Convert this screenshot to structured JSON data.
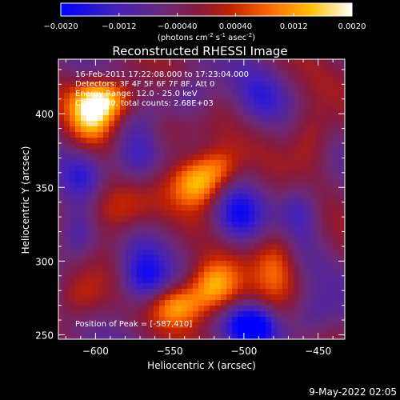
{
  "colorbar": {
    "ticks": [
      "-0.0020",
      "-0.0012",
      "-0.00040",
      "0.00040",
      "0.0012",
      "0.0020"
    ],
    "tick_values": [
      -0.002,
      -0.0012,
      -0.0004,
      0.0004,
      0.0012,
      0.002
    ],
    "range": [
      -0.002,
      0.002
    ],
    "unit_base": "(photons cm",
    "unit_exp1": "-2",
    "unit_mid": " s",
    "unit_exp2": "-1",
    "unit_mid2": " asec",
    "unit_exp3": "-2",
    "unit_end": ")",
    "colormap": [
      "#0000ff",
      "#3b1fb0",
      "#5a2a8a",
      "#7a2a5a",
      "#a01f10",
      "#d04000",
      "#ff8c00",
      "#ffd040",
      "#ffffff"
    ]
  },
  "chart_data": {
    "type": "heatmap",
    "title": "Reconstructed RHESSI Image",
    "xlabel": "Heliocentric X (arcsec)",
    "ylabel": "Heliocentric Y (arcsec)",
    "xlim": [
      -625,
      -432
    ],
    "ylim": [
      247,
      437
    ],
    "x_ticks": [
      -600,
      -550,
      -500,
      -450
    ],
    "y_ticks": [
      250,
      300,
      350,
      400
    ],
    "x_tick_labels": [
      "−600",
      "−550",
      "−500",
      "−450"
    ],
    "y_tick_labels": [
      "250",
      "300",
      "350",
      "400"
    ],
    "value_range": [
      -0.002,
      0.002
    ],
    "grid": false,
    "blobs": [
      {
        "x": -593,
        "y": 410,
        "w": 0.002,
        "sx": 14,
        "sy": 10
      },
      {
        "x": -603,
        "y": 398,
        "w": 0.0015,
        "sx": 10,
        "sy": 12
      },
      {
        "x": -531,
        "y": 354,
        "w": 0.0019,
        "sx": 12,
        "sy": 12
      },
      {
        "x": -516,
        "y": 364,
        "w": 0.001,
        "sx": 10,
        "sy": 10
      },
      {
        "x": -520,
        "y": 283,
        "w": 0.0019,
        "sx": 12,
        "sy": 12
      },
      {
        "x": -545,
        "y": 270,
        "w": 0.0016,
        "sx": 14,
        "sy": 10
      },
      {
        "x": -586,
        "y": 336,
        "w": 0.0012,
        "sx": 16,
        "sy": 14
      },
      {
        "x": -552,
        "y": 387,
        "w": 0.0008,
        "sx": 14,
        "sy": 12
      },
      {
        "x": -478,
        "y": 300,
        "w": 0.0011,
        "sx": 10,
        "sy": 18
      },
      {
        "x": -455,
        "y": 385,
        "w": 0.0009,
        "sx": 10,
        "sy": 16
      },
      {
        "x": -612,
        "y": 275,
        "w": 0.0009,
        "sx": 12,
        "sy": 12
      },
      {
        "x": -562,
        "y": 300,
        "w": 0.0007,
        "sx": 12,
        "sy": 12
      },
      {
        "x": -566,
        "y": 291,
        "w": -0.0019,
        "sx": 12,
        "sy": 16
      },
      {
        "x": -494,
        "y": 256,
        "w": -0.0018,
        "sx": 12,
        "sy": 10
      },
      {
        "x": -572,
        "y": 372,
        "w": -0.0013,
        "sx": 12,
        "sy": 16
      },
      {
        "x": -505,
        "y": 330,
        "w": -0.0012,
        "sx": 12,
        "sy": 14
      },
      {
        "x": -462,
        "y": 335,
        "w": -0.001,
        "sx": 10,
        "sy": 14
      },
      {
        "x": -535,
        "y": 412,
        "w": -0.0009,
        "sx": 12,
        "sy": 12
      },
      {
        "x": -612,
        "y": 318,
        "w": -0.0011,
        "sx": 10,
        "sy": 14
      },
      {
        "x": -455,
        "y": 262,
        "w": -0.0008,
        "sx": 12,
        "sy": 12
      },
      {
        "x": -490,
        "y": 410,
        "w": -0.0007,
        "sx": 12,
        "sy": 14
      },
      {
        "x": -608,
        "y": 358,
        "w": -0.0008,
        "sx": 10,
        "sy": 12
      }
    ],
    "peak_label": "Position of Peak = [-587,410]",
    "annotations": [
      "16-Feb-2011 17:22:08.000 to 17:23:04.000",
      "Detectors: 3F 4F 5F 6F 7F 8F, Att 0",
      "Energy Range: 12.0 - 25.0 keV",
      "Clean 100, total counts: 2.68E+03"
    ]
  },
  "footer_timestamp": "9-May-2022 02:05"
}
